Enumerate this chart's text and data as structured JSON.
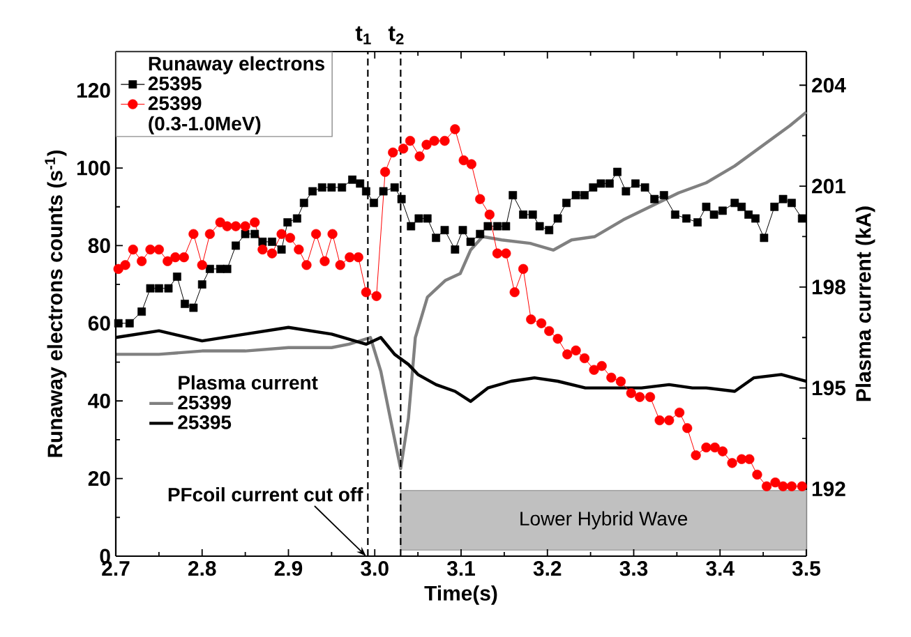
{
  "chart_data": {
    "type": "line",
    "xlabel": "Time(s)",
    "ylabel": "Runaway electrons counts (s$^{-1}$)",
    "y2label": "Plasma current (kA)",
    "legend_title": "Runaway electrons",
    "legend": "top left",
    "annotations": [
      "(0.3-1.0MeV)",
      "Plasma current",
      {
        "text": "PFcoil current cut off",
        "x": 2.99,
        "y": 0
      }
    ],
    "xlim": [
      2.7,
      3.5
    ],
    "ylim": [
      0,
      130
    ],
    "y2lim": [
      190,
      205
    ],
    "xticks": [
      2.7,
      2.8,
      2.9,
      {
        "value": 3.0,
        "label": "3.0"
      },
      3.1,
      3.2,
      3.3,
      3.4,
      3.5
    ],
    "yticks": [
      0,
      20,
      40,
      60,
      80,
      100,
      120
    ],
    "y2ticks": [
      192,
      195,
      198,
      201,
      204
    ],
    "ref_lines": [
      {
        "axis": "x",
        "value": 2.992,
        "label": "t$_{1}$",
        "line_style": "dashed"
      },
      {
        "axis": "x",
        "value": 3.03,
        "label": "t$_{2}$",
        "line_style": "dashed"
      }
    ],
    "bands": [
      {
        "axis": "x",
        "from": 3.03,
        "to": 3.5,
        "label": "Lower Hybrid Wave",
        "color": "#c0c0c0"
      }
    ],
    "series": [
      {
        "name": "25395",
        "color": "#000000",
        "marker": "square",
        "axis": "y",
        "x": [
          2.703,
          2.716,
          2.73,
          2.74,
          2.75,
          2.761,
          2.771,
          2.78,
          2.79,
          2.8,
          2.809,
          2.821,
          2.829,
          2.839,
          2.85,
          2.861,
          2.87,
          2.881,
          2.892,
          2.899,
          2.91,
          2.918,
          2.928,
          2.939,
          2.95,
          2.962,
          2.974,
          2.983,
          2.99,
          2.999,
          3.01,
          3.023,
          3.031,
          3.042,
          3.051,
          3.061,
          3.071,
          3.081,
          3.093,
          3.102,
          3.111,
          3.122,
          3.131,
          3.142,
          3.152,
          3.16,
          3.172,
          3.183,
          3.191,
          3.202,
          3.212,
          3.222,
          3.233,
          3.243,
          3.253,
          3.262,
          3.272,
          3.281,
          3.291,
          3.302,
          3.313,
          3.324,
          3.335,
          3.348,
          3.361,
          3.374,
          3.384,
          3.393,
          3.403,
          3.417,
          3.425,
          3.433,
          3.441,
          3.451,
          3.463,
          3.473,
          3.483,
          3.495
        ],
        "values": [
          60,
          60,
          63,
          69,
          69,
          69,
          72,
          65,
          64,
          70,
          74,
          74,
          74,
          80,
          83,
          83,
          81,
          81,
          79,
          86,
          87,
          91,
          94,
          95,
          95,
          95,
          97,
          96,
          94,
          91,
          94,
          95,
          92,
          85,
          87,
          87,
          82,
          84,
          79,
          84,
          81,
          83,
          85,
          85,
          85,
          93,
          88,
          88,
          85,
          84,
          87,
          91,
          93,
          93,
          95,
          96,
          96,
          99,
          94,
          96,
          95,
          92,
          93,
          88,
          87,
          86,
          90,
          88,
          89,
          91,
          90,
          88,
          87,
          82,
          90,
          92,
          91,
          87
        ]
      },
      {
        "name": "25399",
        "color": "#ff0000",
        "marker": "circle",
        "axis": "y",
        "x": [
          2.703,
          2.711,
          2.72,
          2.73,
          2.74,
          2.75,
          2.76,
          2.769,
          2.779,
          2.79,
          2.8,
          2.809,
          2.821,
          2.829,
          2.839,
          2.85,
          2.861,
          2.87,
          2.881,
          2.892,
          2.902,
          2.912,
          2.921,
          2.932,
          2.942,
          2.951,
          2.96,
          2.971,
          2.981,
          2.99,
          3.002,
          3.012,
          3.021,
          3.033,
          3.041,
          3.052,
          3.06,
          3.069,
          3.081,
          3.093,
          3.103,
          3.112,
          3.122,
          3.133,
          3.142,
          3.152,
          3.162,
          3.172,
          3.181,
          3.193,
          3.202,
          3.212,
          3.223,
          3.233,
          3.243,
          3.254,
          3.263,
          3.274,
          3.285,
          3.297,
          3.307,
          3.319,
          3.33,
          3.341,
          3.353,
          3.362,
          3.372,
          3.384,
          3.394,
          3.403,
          3.414,
          3.425,
          3.434,
          3.443,
          3.454,
          3.464,
          3.473,
          3.483,
          3.495
        ],
        "values": [
          74,
          75,
          79,
          76,
          79,
          79,
          76,
          77,
          77,
          83,
          75,
          83,
          86,
          85,
          85,
          85,
          86,
          79,
          78,
          83,
          82,
          79,
          75,
          83,
          76,
          83,
          75,
          77,
          77,
          68,
          67,
          99,
          104,
          105,
          107,
          103,
          106,
          107,
          107,
          110,
          102,
          101,
          92,
          88,
          78,
          78,
          68,
          74,
          61,
          60,
          58,
          56,
          52,
          53,
          51,
          48,
          49,
          46,
          45,
          42,
          41,
          41,
          35,
          35,
          37,
          33,
          26,
          28,
          28,
          27,
          24,
          25,
          25,
          21,
          18,
          19,
          18,
          18,
          18
        ]
      },
      {
        "name": "25399",
        "color": "#808080",
        "marker": "none",
        "axis": "y2",
        "x": [
          2.7,
          2.75,
          2.8,
          2.85,
          2.9,
          2.95,
          2.97,
          2.995,
          3.007,
          3.018,
          3.03,
          3.039,
          3.047,
          3.061,
          3.082,
          3.099,
          3.111,
          3.125,
          3.147,
          3.18,
          3.207,
          3.228,
          3.255,
          3.288,
          3.32,
          3.352,
          3.384,
          3.417,
          3.449,
          3.481,
          3.5
        ],
        "values": [
          196.0,
          196.0,
          196.1,
          196.1,
          196.2,
          196.2,
          196.3,
          196.5,
          195.5,
          194.1,
          192.6,
          194.1,
          196.5,
          197.7,
          198.2,
          198.4,
          199.1,
          199.5,
          199.4,
          199.3,
          199.1,
          199.4,
          199.5,
          200.0,
          200.4,
          200.8,
          201.1,
          201.6,
          202.2,
          202.8,
          203.2
        ]
      },
      {
        "name": "25395",
        "color": "#000000",
        "marker": "none",
        "axis": "y2",
        "x": [
          2.7,
          2.75,
          2.8,
          2.85,
          2.9,
          2.95,
          2.99,
          3.007,
          3.023,
          3.039,
          3.05,
          3.071,
          3.093,
          3.111,
          3.131,
          3.158,
          3.185,
          3.212,
          3.244,
          3.277,
          3.309,
          3.341,
          3.368,
          3.384,
          3.417,
          3.439,
          3.471,
          3.5
        ],
        "values": [
          196.5,
          196.7,
          196.4,
          196.6,
          196.8,
          196.6,
          196.3,
          196.5,
          196.0,
          195.7,
          195.4,
          195.1,
          194.9,
          194.6,
          195.0,
          195.2,
          195.3,
          195.2,
          195.0,
          195.0,
          195.0,
          195.1,
          195.0,
          195.0,
          194.9,
          195.3,
          195.4,
          195.2
        ]
      }
    ]
  }
}
